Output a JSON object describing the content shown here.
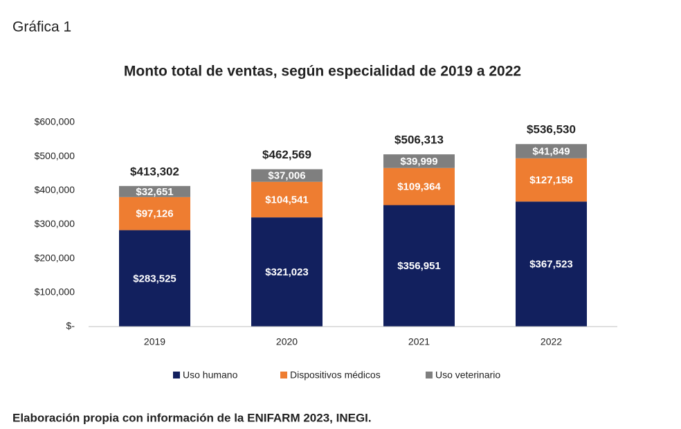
{
  "header": {
    "title": "Gráfica 1"
  },
  "chart_data": {
    "type": "stacked_bar",
    "title": "Monto total de ventas, según especialidad de 2019 a 2022",
    "categories": [
      "2019",
      "2020",
      "2021",
      "2022"
    ],
    "series": [
      {
        "name": "Uso humano",
        "color": "#12205e",
        "values": [
          283525,
          321023,
          356951,
          367523
        ],
        "value_labels": [
          "$283,525",
          "$321,023",
          "$356,951",
          "$367,523"
        ]
      },
      {
        "name": "Dispositivos médicos",
        "color": "#ee7d31",
        "values": [
          97126,
          104541,
          109364,
          127158
        ],
        "value_labels": [
          "$97,126",
          "$104,541",
          "$109,364",
          "$127,158"
        ]
      },
      {
        "name": "Uso veterinario",
        "color": "#7f7f7f",
        "values": [
          32651,
          37006,
          39999,
          41849
        ],
        "value_labels": [
          "$32,651",
          "$37,006",
          "$39,999",
          "$41,849"
        ]
      }
    ],
    "totals": [
      413302,
      462569,
      506313,
      536530
    ],
    "total_labels": [
      "$413,302",
      "$462,569",
      "$506,313",
      "$536,530"
    ],
    "ylim": [
      0,
      600000
    ],
    "yticks": [
      {
        "value": 0,
        "label": "$-"
      },
      {
        "value": 100000,
        "label": "$100,000"
      },
      {
        "value": 200000,
        "label": "$200,000"
      },
      {
        "value": 300000,
        "label": "$300,000"
      },
      {
        "value": 400000,
        "label": "$400,000"
      },
      {
        "value": 500000,
        "label": "$500,000"
      },
      {
        "value": 600000,
        "label": "$600,000"
      }
    ],
    "grid": false,
    "legend": "bottom"
  },
  "footer": {
    "source": "Elaboración propia con información de la ENIFARM 2023, INEGI."
  }
}
